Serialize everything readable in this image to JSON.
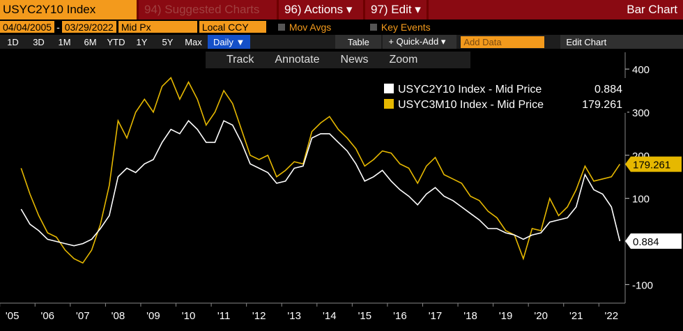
{
  "ui": {
    "ticker": "USYC2Y10 Index",
    "suggested": "94) Suggested Charts",
    "actions": "96) Actions ▾",
    "edit": "97) Edit ▾",
    "mode": "Bar Chart",
    "start": "04/04/2005",
    "dash": "-",
    "end": "03/29/2022",
    "field": "Mid Px",
    "ccy": "Local CCY",
    "movavgs": "Mov Avgs",
    "keyevents": "Key Events",
    "ranges": [
      "1D",
      "3D",
      "1M",
      "6M",
      "YTD",
      "1Y",
      "5Y",
      "Max"
    ],
    "freq": "Daily ▼",
    "table": "Table",
    "quickadd": "+ Quick-Add ▾",
    "adddata": "Add Data",
    "editchart": "Edit Chart",
    "tools": [
      "Track",
      "Annotate",
      "News",
      "Zoom"
    ]
  },
  "chart_data": {
    "type": "line",
    "x": [
      2005.25,
      2005.5,
      2005.75,
      2006,
      2006.25,
      2006.5,
      2006.75,
      2007,
      2007.25,
      2007.5,
      2007.75,
      2008,
      2008.25,
      2008.5,
      2008.75,
      2009,
      2009.25,
      2009.5,
      2009.75,
      2010,
      2010.25,
      2010.5,
      2010.75,
      2011,
      2011.25,
      2011.5,
      2011.75,
      2012,
      2012.25,
      2012.5,
      2012.75,
      2013,
      2013.25,
      2013.5,
      2013.75,
      2014,
      2014.25,
      2014.5,
      2014.75,
      2015,
      2015.25,
      2015.5,
      2015.75,
      2016,
      2016.25,
      2016.5,
      2016.75,
      2017,
      2017.25,
      2017.5,
      2017.75,
      2018,
      2018.25,
      2018.5,
      2018.75,
      2019,
      2019.25,
      2019.5,
      2019.75,
      2020,
      2020.25,
      2020.5,
      2020.75,
      2021,
      2021.25,
      2021.5,
      2021.75,
      2022,
      2022.24
    ],
    "series": [
      {
        "name": "USYC2Y10 Index - Mid Price",
        "color": "#ffffff",
        "values": [
          75,
          40,
          25,
          5,
          0,
          -5,
          -10,
          -5,
          5,
          30,
          60,
          150,
          170,
          160,
          180,
          190,
          230,
          260,
          250,
          280,
          260,
          230,
          230,
          280,
          270,
          230,
          180,
          170,
          160,
          135,
          140,
          170,
          175,
          240,
          250,
          250,
          230,
          210,
          180,
          140,
          150,
          165,
          140,
          120,
          105,
          85,
          110,
          125,
          105,
          95,
          80,
          65,
          50,
          30,
          30,
          20,
          15,
          5,
          15,
          20,
          45,
          50,
          55,
          80,
          155,
          120,
          110,
          80,
          0.884
        ]
      },
      {
        "name": "USYC3M10 Index - Mid Price",
        "color": "#e6b800",
        "values": [
          170,
          110,
          60,
          20,
          10,
          -20,
          -40,
          -50,
          -20,
          40,
          130,
          280,
          240,
          300,
          330,
          300,
          360,
          380,
          330,
          370,
          330,
          270,
          300,
          350,
          320,
          260,
          200,
          190,
          200,
          150,
          165,
          185,
          180,
          255,
          275,
          290,
          260,
          240,
          215,
          175,
          190,
          210,
          205,
          180,
          170,
          135,
          175,
          195,
          155,
          145,
          135,
          105,
          95,
          70,
          55,
          25,
          15,
          -40,
          30,
          25,
          100,
          60,
          80,
          120,
          175,
          140,
          145,
          150,
          179.261
        ]
      }
    ],
    "xlim": [
      2004.65,
      2022.35
    ],
    "xticks": [
      {
        "value": 2005,
        "label": "'05"
      },
      {
        "value": 2006,
        "label": "'06"
      },
      {
        "value": 2007,
        "label": "'07"
      },
      {
        "value": 2008,
        "label": "'08"
      },
      {
        "value": 2009,
        "label": "'09"
      },
      {
        "value": 2010,
        "label": "'10"
      },
      {
        "value": 2011,
        "label": "'11"
      },
      {
        "value": 2012,
        "label": "'12"
      },
      {
        "value": 2013,
        "label": "'13"
      },
      {
        "value": 2014,
        "label": "'14"
      },
      {
        "value": 2015,
        "label": "'15"
      },
      {
        "value": 2016,
        "label": "'16"
      },
      {
        "value": 2017,
        "label": "'17"
      },
      {
        "value": 2018,
        "label": "'18"
      },
      {
        "value": 2019,
        "label": "'19"
      },
      {
        "value": 2020,
        "label": "'20"
      },
      {
        "value": 2021,
        "label": "'21"
      },
      {
        "value": 2022,
        "label": "'22"
      }
    ],
    "ylim": [
      -135,
      439
    ],
    "yticks": [
      400,
      300,
      200,
      100,
      -100
    ]
  }
}
